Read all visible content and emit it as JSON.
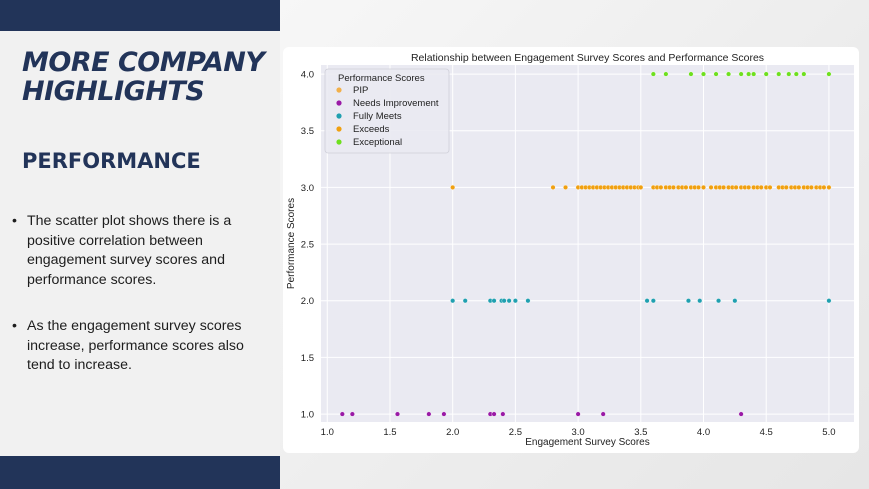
{
  "slide": {
    "title": "MORE COMPANY HIGHLIGHTS",
    "subtitle": "PERFORMANCE",
    "bullets": [
      "The scatter plot shows there is a positive correlation between engagement survey scores and performance scores.",
      "As the engagement survey scores increase, performance scores also tend to increase."
    ]
  },
  "chart_data": {
    "type": "scatter",
    "title": "Relationship between Engagement Survey Scores and Performance Scores",
    "xlabel": "Engagement Survey Scores",
    "ylabel": "Performance Scores",
    "xlim": [
      0.95,
      5.2
    ],
    "ylim": [
      0.93,
      4.08
    ],
    "xticks": [
      1.0,
      1.5,
      2.0,
      2.5,
      3.0,
      3.5,
      4.0,
      4.5,
      5.0
    ],
    "yticks": [
      1.0,
      1.5,
      2.0,
      2.5,
      3.0,
      3.5,
      4.0
    ],
    "grid": true,
    "legend": {
      "title": "Performance Scores",
      "placement": "top-left"
    },
    "series": [
      {
        "name": "PIP",
        "color": "#f2b04a",
        "points": []
      },
      {
        "name": "Needs Improvement",
        "color": "#9a1aa6",
        "x": [
          1.12,
          1.2,
          1.56,
          1.81,
          1.93,
          2.3,
          2.33,
          2.4,
          3.0,
          3.2,
          4.3
        ],
        "y": [
          1,
          1,
          1,
          1,
          1,
          1,
          1,
          1,
          1,
          1,
          1
        ]
      },
      {
        "name": "Fully Meets",
        "color": "#20a0b0",
        "x": [
          2.0,
          2.1,
          2.3,
          2.33,
          2.39,
          2.41,
          2.45,
          2.5,
          2.6,
          3.55,
          3.6,
          3.88,
          3.97,
          4.12,
          4.25,
          5.0
        ],
        "y": [
          2,
          2,
          2,
          2,
          2,
          2,
          2,
          2,
          2,
          2,
          2,
          2,
          2,
          2,
          2,
          2
        ]
      },
      {
        "name": "Exceeds",
        "color": "#f0a010",
        "x": [
          2.0,
          2.8,
          2.9,
          3.0,
          3.03,
          3.06,
          3.09,
          3.12,
          3.15,
          3.18,
          3.21,
          3.24,
          3.27,
          3.3,
          3.33,
          3.36,
          3.39,
          3.42,
          3.45,
          3.48,
          3.5,
          3.6,
          3.63,
          3.66,
          3.7,
          3.73,
          3.76,
          3.8,
          3.83,
          3.86,
          3.9,
          3.93,
          3.96,
          4.0,
          4.06,
          4.1,
          4.13,
          4.16,
          4.2,
          4.23,
          4.26,
          4.3,
          4.33,
          4.36,
          4.4,
          4.43,
          4.46,
          4.5,
          4.53,
          4.6,
          4.63,
          4.66,
          4.7,
          4.73,
          4.76,
          4.8,
          4.83,
          4.86,
          4.9,
          4.93,
          4.96,
          5.0
        ],
        "y": [
          3,
          3,
          3,
          3,
          3,
          3,
          3,
          3,
          3,
          3,
          3,
          3,
          3,
          3,
          3,
          3,
          3,
          3,
          3,
          3,
          3,
          3,
          3,
          3,
          3,
          3,
          3,
          3,
          3,
          3,
          3,
          3,
          3,
          3,
          3,
          3,
          3,
          3,
          3,
          3,
          3,
          3,
          3,
          3,
          3,
          3,
          3,
          3,
          3,
          3,
          3,
          3,
          3,
          3,
          3,
          3,
          3,
          3,
          3,
          3,
          3,
          3
        ]
      },
      {
        "name": "Exceptional",
        "color": "#6ee01e",
        "x": [
          3.6,
          3.7,
          3.9,
          4.0,
          4.1,
          4.2,
          4.3,
          4.36,
          4.4,
          4.5,
          4.6,
          4.68,
          4.74,
          4.8,
          5.0
        ],
        "y": [
          4,
          4,
          4,
          4,
          4,
          4,
          4,
          4,
          4,
          4,
          4,
          4,
          4,
          4,
          4
        ]
      }
    ]
  }
}
